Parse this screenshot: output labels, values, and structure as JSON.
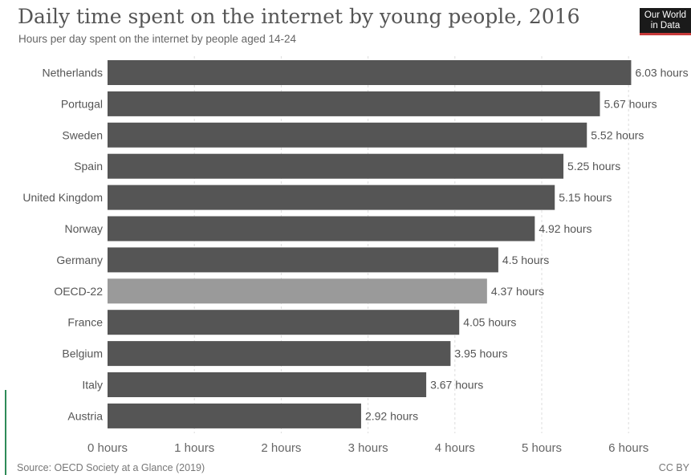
{
  "header": {
    "title": "Daily time spent on the internet by young people, 2016",
    "subtitle": "Hours per day spent on the internet by people aged 14-24",
    "logo_line1": "Our World",
    "logo_line2": "in Data"
  },
  "footer": {
    "source": "Source: OECD Society at a Glance (2019)",
    "license": "CC BY"
  },
  "colors": {
    "bar": "#555555",
    "highlight_bar": "#9a9a9a",
    "grid": "#dddddd",
    "label": "#555555"
  },
  "chart_data": {
    "type": "bar",
    "orientation": "horizontal",
    "title": "Daily time spent on the internet by young people, 2016",
    "subtitle": "Hours per day spent on the internet by people aged 14-24",
    "categories": [
      "Netherlands",
      "Portugal",
      "Sweden",
      "Spain",
      "United Kingdom",
      "Norway",
      "Germany",
      "OECD-22",
      "France",
      "Belgium",
      "Italy",
      "Austria"
    ],
    "values": [
      6.03,
      5.67,
      5.52,
      5.25,
      5.15,
      4.92,
      4.5,
      4.37,
      4.05,
      3.95,
      3.67,
      2.92
    ],
    "value_labels": [
      "6.03 hours",
      "5.67 hours",
      "5.52 hours",
      "5.25 hours",
      "5.15 hours",
      "4.92 hours",
      "4.5 hours",
      "4.37 hours",
      "4.05 hours",
      "3.95 hours",
      "3.67 hours",
      "2.92 hours"
    ],
    "highlight": [
      "OECD-22"
    ],
    "xlim": [
      0,
      6
    ],
    "xticks": [
      0,
      1,
      2,
      3,
      4,
      5,
      6
    ],
    "xtick_labels": [
      "0 hours",
      "1 hours",
      "2 hours",
      "3 hours",
      "4 hours",
      "5 hours",
      "6 hours"
    ],
    "grid": true,
    "grid_style": "dashed vertical",
    "legend": "none"
  }
}
